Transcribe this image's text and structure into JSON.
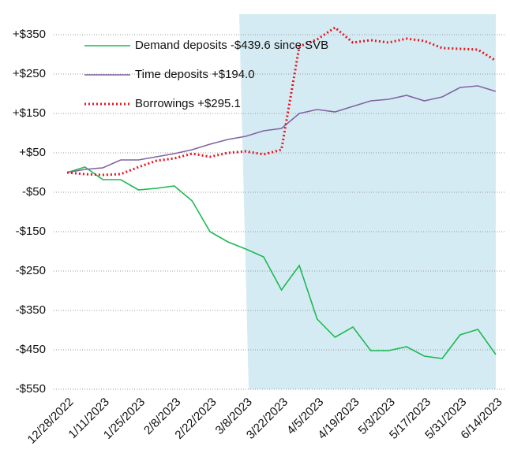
{
  "chart_data": {
    "type": "line",
    "categories": [
      "12/28/2022",
      null,
      "1/11/2023",
      null,
      "1/25/2023",
      null,
      "2/8/2023",
      null,
      "2/22/2023",
      null,
      "3/8/2023",
      null,
      "3/22/2023",
      null,
      "4/5/2023",
      null,
      "4/19/2023",
      null,
      "5/3/2023",
      null,
      "5/17/2023",
      null,
      "5/31/2023",
      null,
      "6/14/2023"
    ],
    "series": [
      {
        "name": "Demand deposits -$439.6 since SVB",
        "color": "#1db954",
        "style": "solid",
        "values": [
          0,
          14,
          -18,
          -18,
          -44,
          -40,
          -34,
          -72,
          -150,
          -176,
          -194,
          -214,
          -298,
          -236,
          -372,
          -418,
          -392,
          -452,
          -452,
          -442,
          -466,
          -472,
          -412,
          -398,
          -462
        ]
      },
      {
        "name": "Time deposits +$194.0",
        "color": "#8064a2",
        "style": "solid",
        "values": [
          0,
          8,
          12,
          32,
          32,
          40,
          48,
          58,
          72,
          84,
          92,
          106,
          112,
          150,
          160,
          154,
          168,
          182,
          186,
          196,
          182,
          192,
          216,
          220,
          206
        ]
      },
      {
        "name": "Borrowings +$295.1",
        "color": "#e8141e",
        "style": "dotted",
        "values": [
          0,
          -4,
          -6,
          -4,
          14,
          30,
          36,
          48,
          40,
          50,
          54,
          46,
          58,
          320,
          338,
          368,
          330,
          336,
          330,
          340,
          334,
          316,
          314,
          312,
          284
        ]
      }
    ],
    "ylim": [
      -550,
      400
    ],
    "yticks": [
      {
        "value": 350,
        "label": "+$350"
      },
      {
        "value": 250,
        "label": "+$250"
      },
      {
        "value": 150,
        "label": "+$150"
      },
      {
        "value": 50,
        "label": "+$50"
      },
      {
        "value": -50,
        "label": "-$50"
      },
      {
        "value": -150,
        "label": "-$150"
      },
      {
        "value": -250,
        "label": "-$250"
      },
      {
        "value": -350,
        "label": "-$350"
      },
      {
        "value": -450,
        "label": "-$450"
      },
      {
        "value": -550,
        "label": "-$550"
      }
    ],
    "grid": true
  }
}
